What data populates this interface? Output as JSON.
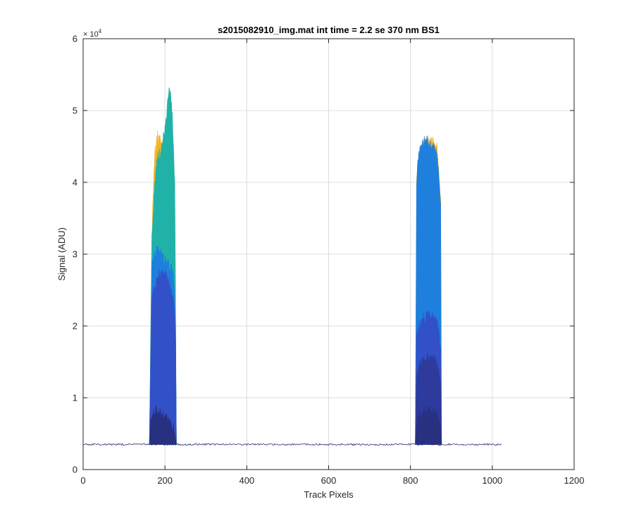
{
  "chart_data": {
    "type": "area",
    "title": "s2015082910_img.mat int time = 2.2 se  370 nm BS1",
    "xlabel": "Track Pixels",
    "ylabel": "Signal (ADU)",
    "xlim": [
      0,
      1200
    ],
    "ylim": [
      0,
      60000
    ],
    "y_scale_label": "× 10",
    "y_scale_exponent": "4",
    "grid": true,
    "x_ticks": [
      0,
      200,
      400,
      600,
      800,
      1000,
      1200
    ],
    "x_tick_labels": [
      "0",
      "200",
      "400",
      "600",
      "800",
      "1000",
      "1200"
    ],
    "y_ticks": [
      0,
      10000,
      20000,
      30000,
      40000,
      50000,
      60000
    ],
    "y_tick_labels": [
      "0",
      "1",
      "2",
      "3",
      "4",
      "5",
      "6"
    ],
    "baseline": {
      "x": [
        0,
        1023
      ],
      "y": 3500,
      "color": "#2a2f7a"
    },
    "series": [
      {
        "color": "#f0b429",
        "peaks": [
          {
            "x": [
              162,
              168,
              175,
              182,
              190,
              198,
              205,
              212,
              218,
              224,
              228
            ],
            "y": [
              3500,
              33000,
              44000,
              46500,
              45500,
              45000,
              44500,
              44000,
              43000,
              39500,
              3500
            ]
          },
          {
            "x": [
              812,
              815,
              820,
              830,
              840,
              850,
              860,
              866,
              870,
              874,
              876
            ],
            "y": [
              3500,
              40000,
              43000,
              45000,
              46000,
              45500,
              45500,
              44500,
              41000,
              38000,
              3500
            ]
          }
        ]
      },
      {
        "color": "#20b2a8",
        "peaks": [
          {
            "x": [
              162,
              168,
              175,
              182,
              190,
              198,
              205,
              210,
              214,
              218,
              224,
              228
            ],
            "y": [
              3500,
              32000,
              40000,
              43500,
              44000,
              47000,
              50000,
              53000,
              52000,
              49500,
              40000,
              3500
            ]
          }
        ]
      },
      {
        "color": "#1f7fdd",
        "peaks": [
          {
            "x": [
              162,
              168,
              176,
              185,
              195,
              205,
              214,
              222,
              226,
              228
            ],
            "y": [
              3500,
              29000,
              30000,
              30500,
              29500,
              29000,
              28000,
              26500,
              20000,
              3500
            ]
          },
          {
            "x": [
              812,
              815,
              820,
              830,
              840,
              850,
              860,
              866,
              870,
              874,
              876
            ],
            "y": [
              3500,
              40500,
              43500,
              45500,
              45800,
              45000,
              44500,
              43000,
              40000,
              37000,
              3500
            ]
          }
        ]
      },
      {
        "color": "#3250c8",
        "peaks": [
          {
            "x": [
              162,
              168,
              176,
              185,
              195,
              205,
              214,
              222,
              226,
              228
            ],
            "y": [
              3500,
              24000,
              25500,
              27000,
              27500,
              26500,
              25000,
              23000,
              18000,
              3500
            ]
          },
          {
            "x": [
              812,
              815,
              822,
              830,
              840,
              850,
              860,
              866,
              870,
              874,
              876
            ],
            "y": [
              3500,
              18000,
              20500,
              21000,
              21500,
              21500,
              21000,
              20500,
              19000,
              17000,
              3500
            ]
          }
        ]
      },
      {
        "color": "#2e3a9c",
        "peaks": [
          {
            "x": [
              812,
              815,
              822,
              830,
              840,
              850,
              860,
              866,
              870,
              874,
              876
            ],
            "y": [
              3500,
              13000,
              14500,
              15000,
              15500,
              15500,
              15000,
              14500,
              13500,
              11500,
              3500
            ]
          }
        ]
      },
      {
        "color": "#283080",
        "peaks": [
          {
            "x": [
              162,
              165,
              170,
              178,
              185,
              192,
              200,
              208,
              214,
              222,
              228
            ],
            "y": [
              3500,
              6500,
              7500,
              8000,
              7800,
              7500,
              7000,
              6800,
              6300,
              5500,
              3500
            ]
          },
          {
            "x": [
              812,
              816,
              824,
              835,
              845,
              855,
              865,
              872,
              876
            ],
            "y": [
              3500,
              7000,
              7800,
              8000,
              8000,
              7800,
              7500,
              6800,
              3500
            ]
          }
        ]
      }
    ]
  }
}
